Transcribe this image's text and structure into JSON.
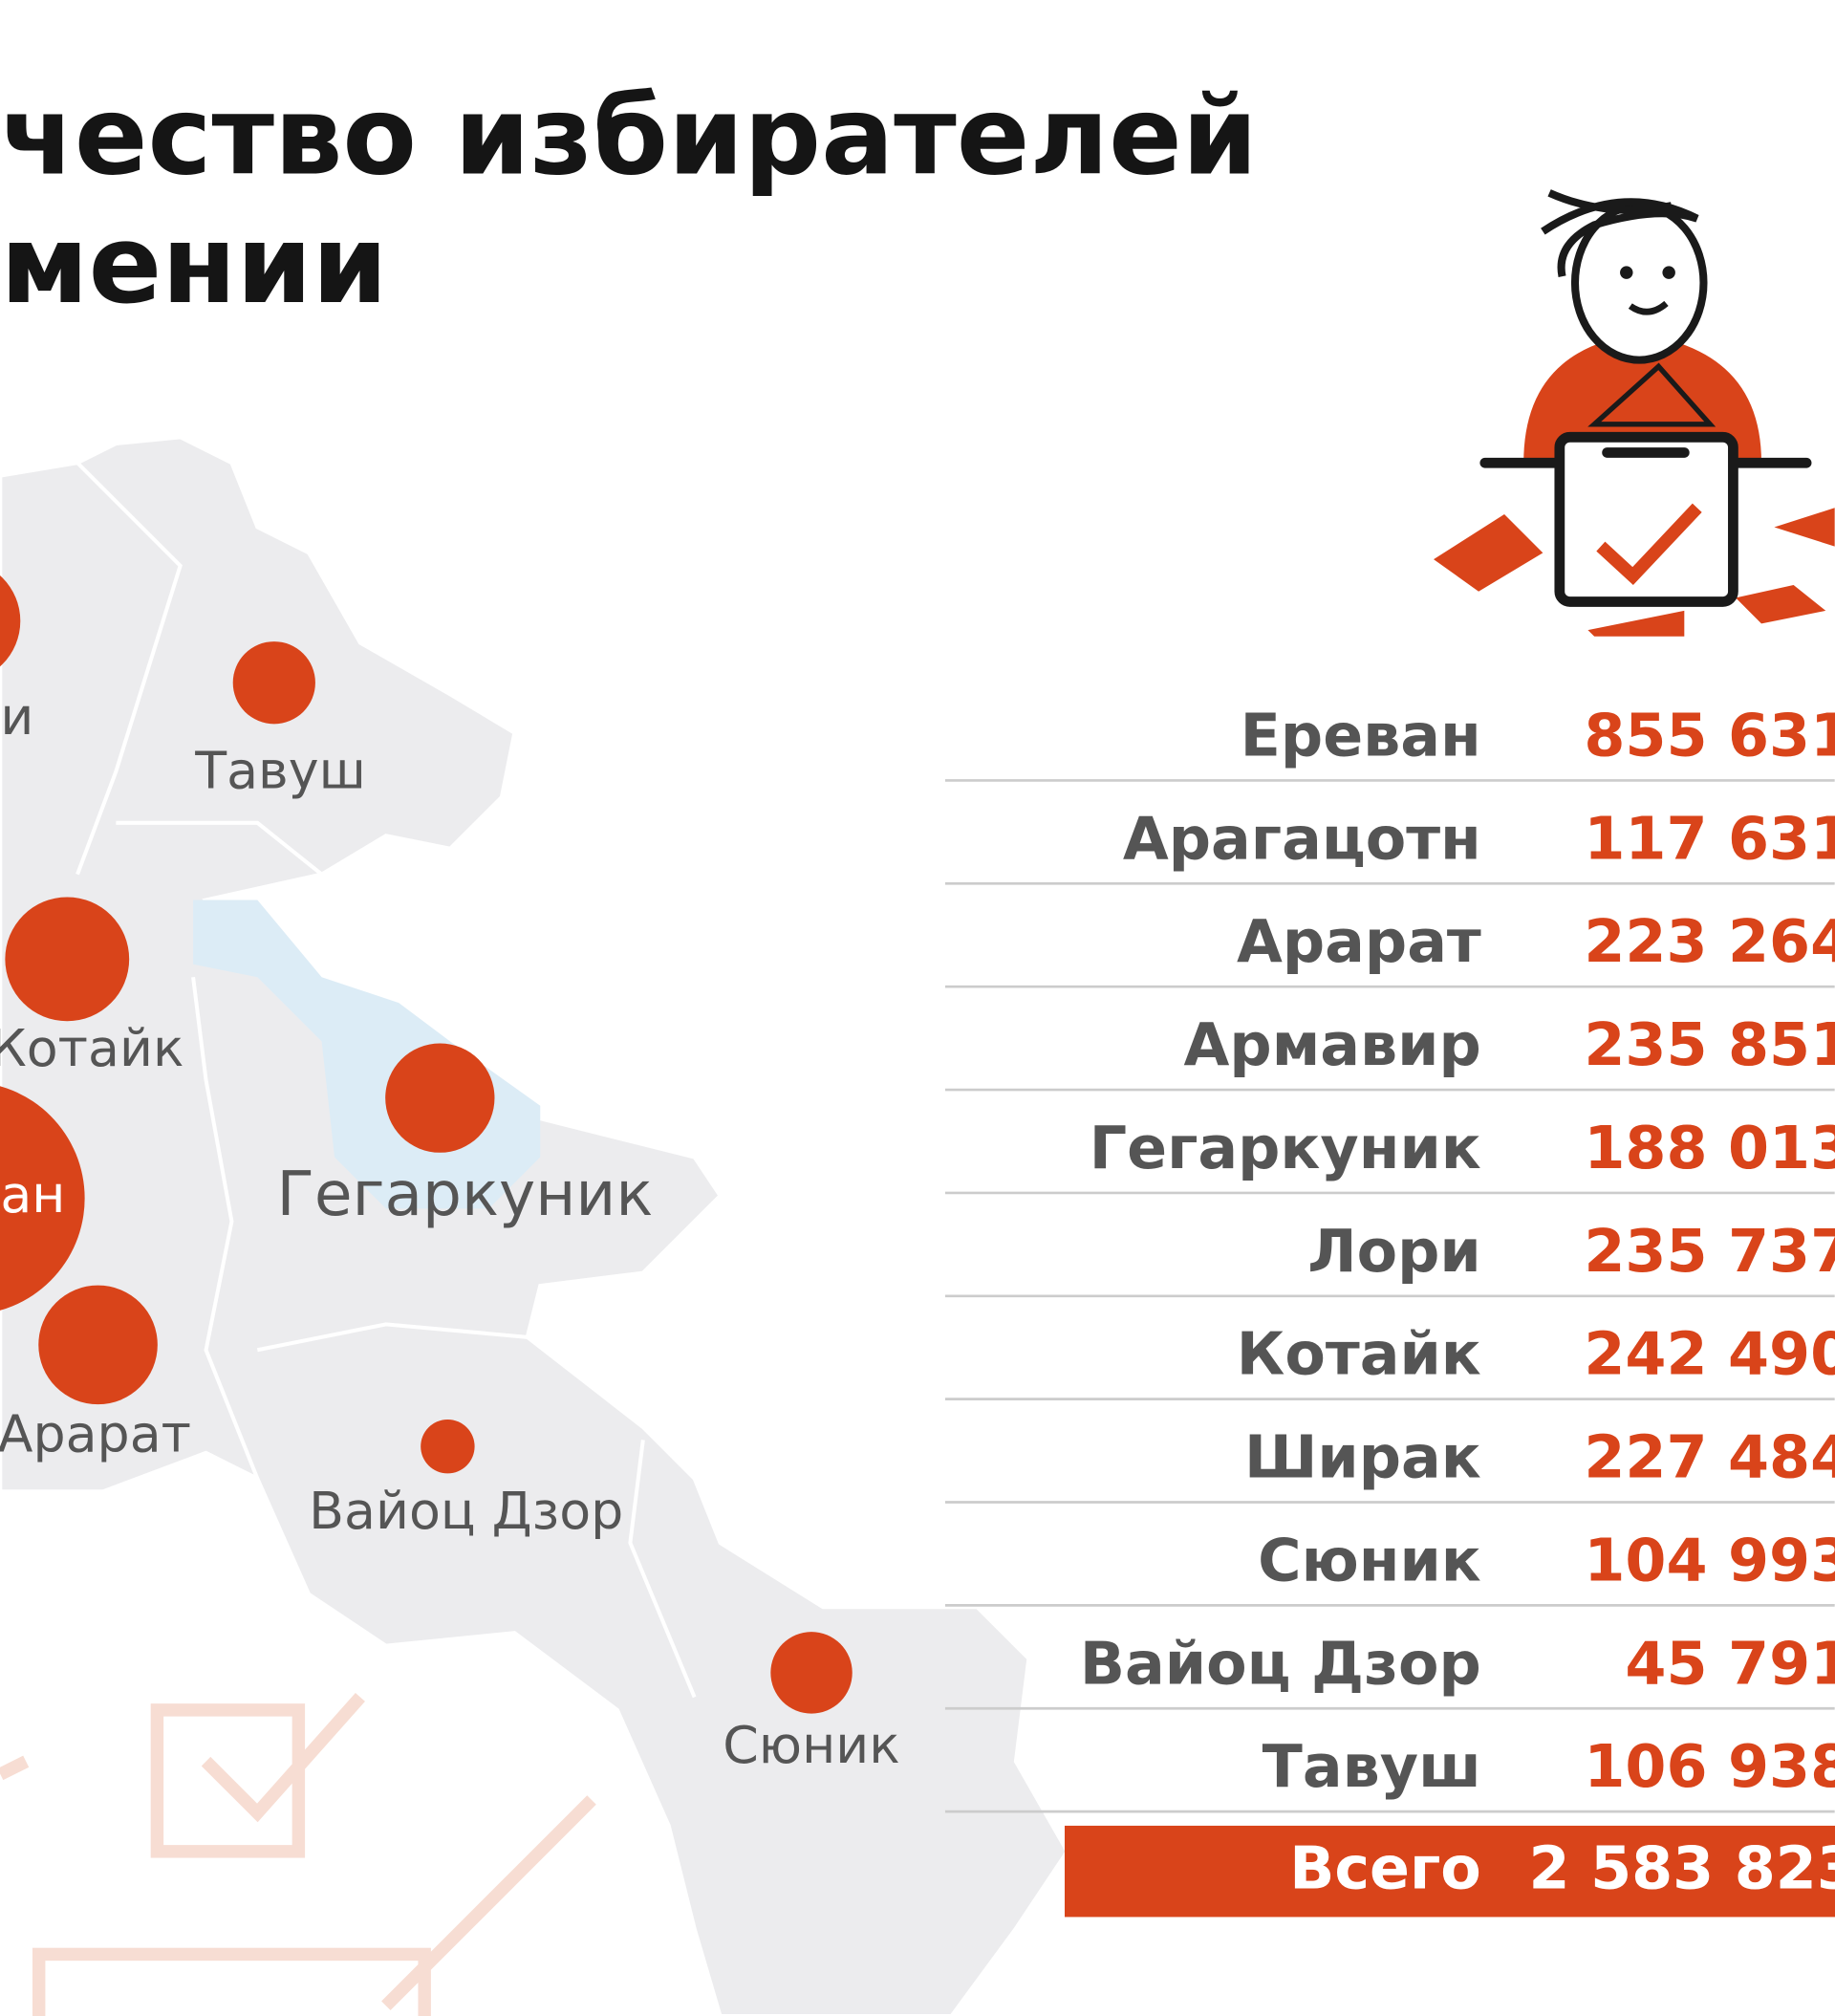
{
  "header": {
    "title_lines": [
      "чество избирателей",
      "мении"
    ]
  },
  "map": {
    "labels": [
      "и",
      "Тавуш",
      "Котайк",
      "ан",
      "Арарат",
      "Гегаркуник",
      "Вайоц Дзор",
      "Сюник"
    ]
  },
  "table": {
    "rows": [
      {
        "name": "Ереван",
        "value": 855631,
        "label": "855 631"
      },
      {
        "name": "Арагацотн",
        "value": 117631,
        "label": "117 631"
      },
      {
        "name": "Арарат",
        "value": 223264,
        "label": "223 264"
      },
      {
        "name": "Армавир",
        "value": 235851,
        "label": "235 851"
      },
      {
        "name": "Гегаркуник",
        "value": 188013,
        "label": "188 013"
      },
      {
        "name": "Лори",
        "value": 235737,
        "label": "235 737"
      },
      {
        "name": "Котайк",
        "value": 242490,
        "label": "242 490"
      },
      {
        "name": "Ширак",
        "value": 227484,
        "label": "227 484"
      },
      {
        "name": "Сюник",
        "value": 104993,
        "label": "104 993"
      },
      {
        "name": "Вайоц Дзор",
        "value": 45791,
        "label": "45 791"
      },
      {
        "name": "Тавуш",
        "value": 106938,
        "label": "106 938"
      }
    ],
    "total": {
      "name": "Всего",
      "value": 2583823,
      "label": "2 583 823"
    }
  }
}
